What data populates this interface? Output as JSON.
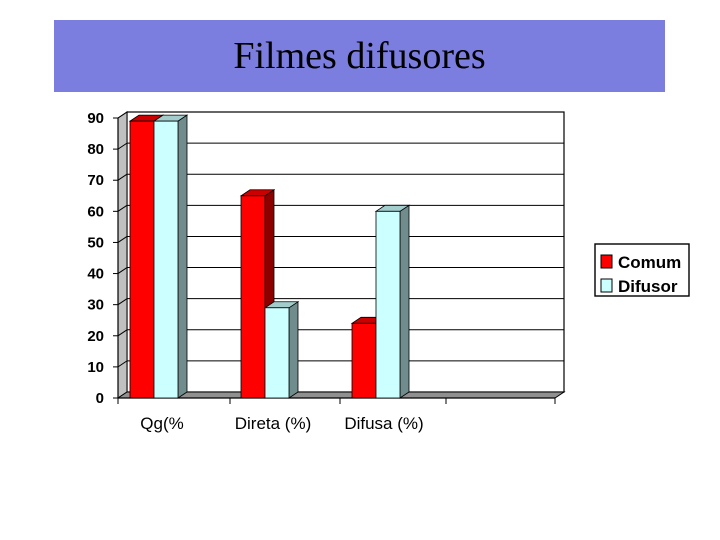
{
  "slide": {
    "title": "Filmes difusores"
  },
  "chart_data": {
    "type": "bar",
    "categories": [
      "Qg(%",
      "Direta (%)",
      "Difusa (%)"
    ],
    "series": [
      {
        "name": "Comum",
        "values": [
          89,
          65,
          24
        ],
        "color": "#ff0000"
      },
      {
        "name": "Difusor",
        "values": [
          89,
          29,
          60
        ],
        "color": "#ccffff"
      }
    ],
    "ylim": [
      0,
      90
    ],
    "yticks": [
      0,
      10,
      20,
      30,
      40,
      50,
      60,
      70,
      80,
      90
    ],
    "grid": true,
    "legend_position": "right",
    "three_d": true
  }
}
